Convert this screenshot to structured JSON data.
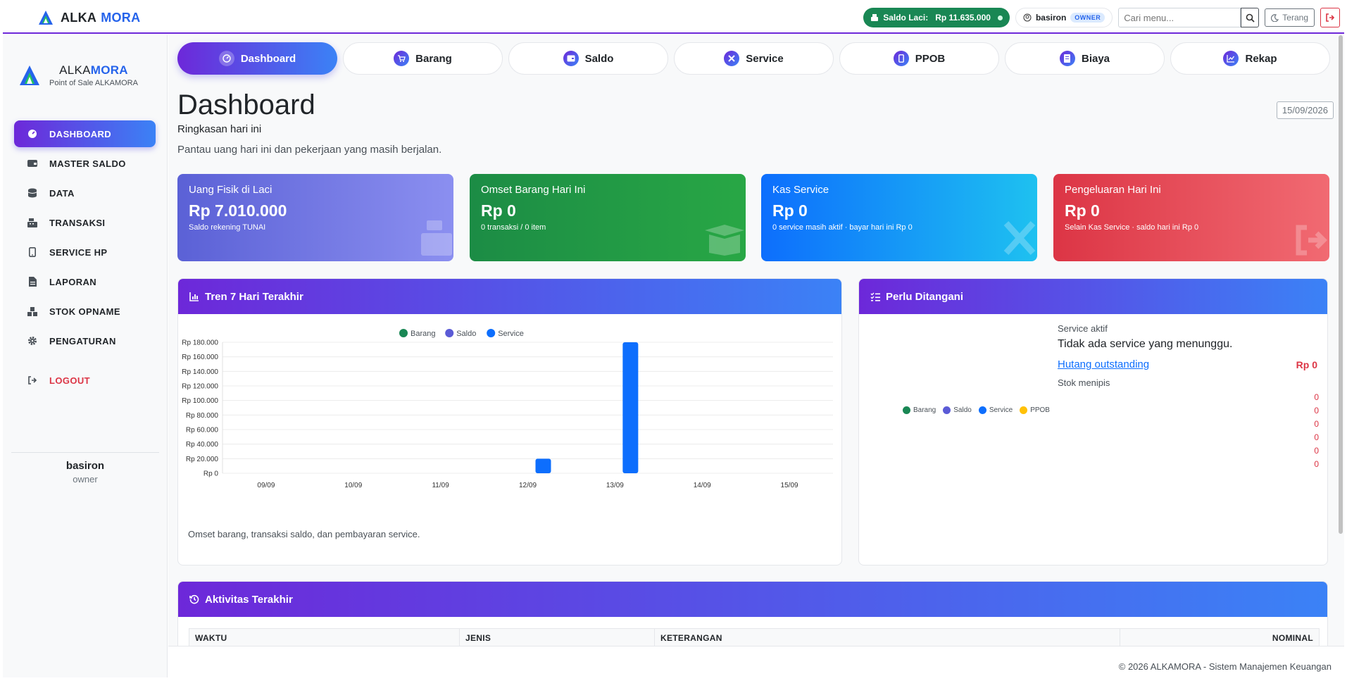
{
  "app": {
    "brand_a": "ALKA",
    "brand_b": "MORA",
    "subtitle": "Point of Sale ALKAMORA"
  },
  "topbar": {
    "saldo_label": "Saldo Laci:",
    "saldo_value": "Rp 11.635.000",
    "user": "basiron",
    "role_badge": "OWNER",
    "search_placeholder": "Cari menu...",
    "theme_label": "Terang"
  },
  "sidebar": {
    "items": [
      {
        "label": "DASHBOARD",
        "icon": "gauge-icon",
        "active": true
      },
      {
        "label": "MASTER SALDO",
        "icon": "wallet-icon"
      },
      {
        "label": "DATA",
        "icon": "database-icon"
      },
      {
        "label": "TRANSAKSI",
        "icon": "cash-register-icon"
      },
      {
        "label": "SERVICE HP",
        "icon": "mobile-icon"
      },
      {
        "label": "LAPORAN",
        "icon": "file-icon"
      },
      {
        "label": "STOK OPNAME",
        "icon": "boxes-icon"
      },
      {
        "label": "PENGATURAN",
        "icon": "gear-icon"
      }
    ],
    "logout": "LOGOUT",
    "user_name": "basiron",
    "user_role": "owner"
  },
  "tabs": [
    {
      "label": "Dashboard",
      "icon": "gauge-icon",
      "active": true
    },
    {
      "label": "Barang",
      "icon": "cart-icon"
    },
    {
      "label": "Saldo",
      "icon": "wallet-icon"
    },
    {
      "label": "Service",
      "icon": "tools-icon"
    },
    {
      "label": "PPOB",
      "icon": "mobile-icon"
    },
    {
      "label": "Biaya",
      "icon": "receipt-icon"
    },
    {
      "label": "Rekap",
      "icon": "chart-line-icon"
    }
  ],
  "page": {
    "title": "Dashboard",
    "subtitle": "Ringkasan hari ini",
    "description": "Pantau uang hari ini dan pekerjaan yang masih berjalan.",
    "date": "15/09/2026"
  },
  "stats": [
    {
      "label": "Uang Fisik di Laci",
      "value": "Rp 7.010.000",
      "sub": "Saldo rekening TUNAI",
      "icon": "cash-register-icon"
    },
    {
      "label": "Omset Barang Hari Ini",
      "value": "Rp 0",
      "sub": "0 transaksi / 0 item",
      "icon": "box-open-icon"
    },
    {
      "label": "Kas Service",
      "value": "Rp 0",
      "sub": "0 service masih aktif · bayar hari ini Rp 0",
      "icon": "tools-icon"
    },
    {
      "label": "Pengeluaran Hari Ini",
      "value": "Rp 0",
      "sub": "Selain Kas Service · saldo hari ini Rp 0",
      "icon": "sign-out-icon"
    }
  ],
  "trend": {
    "title": "Tren 7 Hari Terakhir",
    "caption": "Omset barang, transaksi saldo, dan pembayaran service."
  },
  "chart_data": {
    "type": "bar",
    "categories": [
      "09/09",
      "10/09",
      "11/09",
      "12/09",
      "13/09",
      "14/09",
      "15/09"
    ],
    "series": [
      {
        "name": "Barang",
        "color": "#198754",
        "values": [
          0,
          0,
          0,
          0,
          0,
          0,
          0
        ]
      },
      {
        "name": "Saldo",
        "color": "#5b5bd6",
        "values": [
          0,
          0,
          0,
          0,
          0,
          0,
          0
        ]
      },
      {
        "name": "Service",
        "color": "#0d6efd",
        "values": [
          0,
          0,
          0,
          20000,
          180000,
          0,
          0
        ]
      }
    ],
    "y_ticks": [
      "Rp 0",
      "Rp 20.000",
      "Rp 40.000",
      "Rp 60.000",
      "Rp 80.000",
      "Rp 100.000",
      "Rp 120.000",
      "Rp 140.000",
      "Rp 160.000",
      "Rp 180.000"
    ],
    "ylim": [
      0,
      180000
    ],
    "legend": "top",
    "grid": true
  },
  "todo": {
    "title": "Perlu Ditangani",
    "service_label": "Service aktif",
    "service_text": "Tidak ada service yang menunggu.",
    "hutang_label": "Hutang outstanding",
    "hutang_value": "Rp 0",
    "stok_label": "Stok menipis",
    "stok_values": [
      "0",
      "0",
      "0",
      "0",
      "0",
      "0"
    ],
    "mini_legend": [
      {
        "name": "Barang",
        "color": "#198754"
      },
      {
        "name": "Saldo",
        "color": "#5b5bd6"
      },
      {
        "name": "Service",
        "color": "#0d6efd"
      },
      {
        "name": "PPOB",
        "color": "#ffc107"
      }
    ]
  },
  "activity": {
    "title": "Aktivitas Terakhir",
    "columns": [
      "WAKTU",
      "JENIS",
      "KETERANGAN",
      "NOMINAL"
    ]
  },
  "footer": "© 2026 ALKAMORA - Sistem Manajemen Keuangan"
}
